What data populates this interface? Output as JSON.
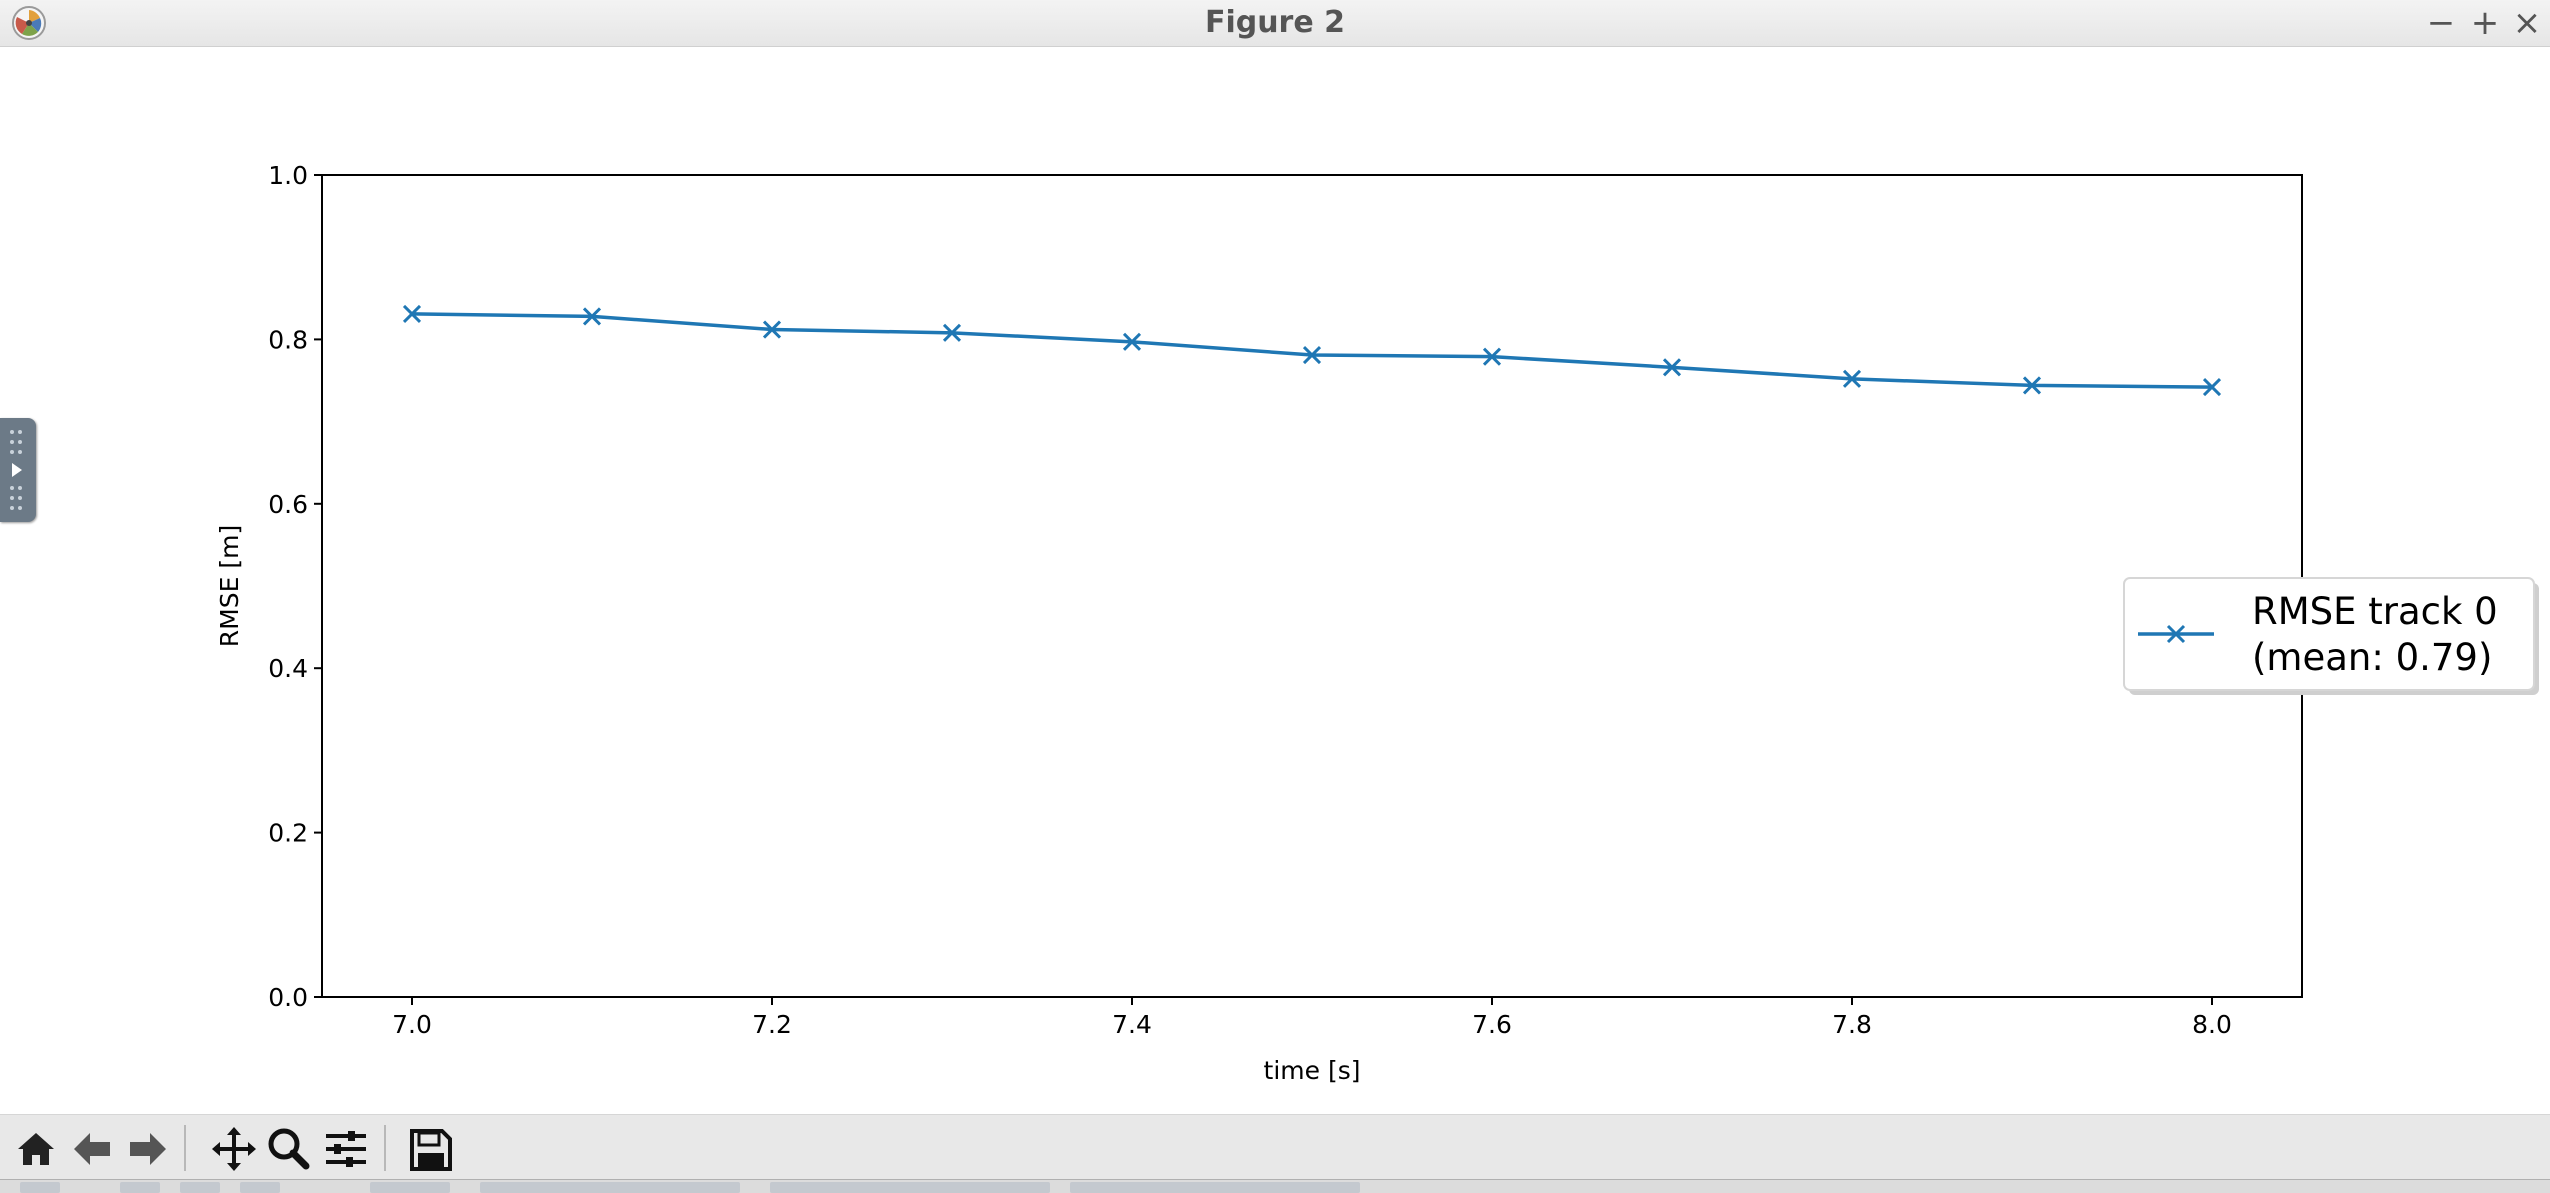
{
  "window": {
    "title": "Figure 2",
    "minimize_glyph": "−",
    "maximize_glyph": "+",
    "close_glyph": "×",
    "app_icon": "matplotlib-icon"
  },
  "chart_data": {
    "type": "line",
    "title": "",
    "xlabel": "time [s]",
    "ylabel": "RMSE [m]",
    "xlim": [
      6.95,
      8.05
    ],
    "ylim": [
      0.0,
      1.0
    ],
    "xticks": [
      "7.0",
      "7.2",
      "7.4",
      "7.6",
      "7.8",
      "8.0"
    ],
    "xtick_values": [
      7.0,
      7.2,
      7.4,
      7.6,
      7.8,
      8.0
    ],
    "yticks": [
      "0.0",
      "0.2",
      "0.4",
      "0.6",
      "0.8",
      "1.0"
    ],
    "ytick_values": [
      0.0,
      0.2,
      0.4,
      0.6,
      0.8,
      1.0
    ],
    "grid": false,
    "legend_placement": "right, outside plot",
    "series": [
      {
        "name": "RMSE track 0\n(mean: 0.79)",
        "name_line1": "RMSE track 0",
        "name_line2": "(mean: 0.79)",
        "color": "#1f77b4",
        "marker": "x",
        "x": [
          7.0,
          7.1,
          7.2,
          7.3,
          7.4,
          7.5,
          7.6,
          7.7,
          7.8,
          7.9,
          8.0
        ],
        "y": [
          0.831,
          0.828,
          0.812,
          0.808,
          0.797,
          0.781,
          0.779,
          0.766,
          0.752,
          0.744,
          0.742
        ]
      }
    ]
  },
  "toolbar": {
    "icons": [
      "home-icon",
      "back-arrow-icon",
      "forward-arrow-icon",
      "pan-icon",
      "zoom-icon",
      "configure-subplots-icon",
      "save-icon"
    ]
  },
  "colors": {
    "line": "#1f77b4",
    "titlebar": "#ececec",
    "toolbar": "#e8e8e8",
    "handle": "#6c7a87"
  }
}
